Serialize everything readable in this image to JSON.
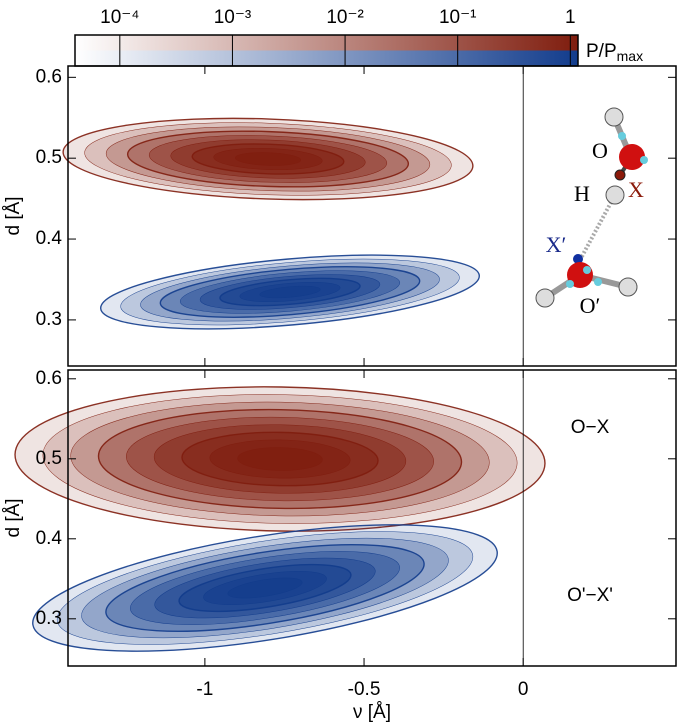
{
  "chart_data": [
    {
      "type": "colorbar",
      "label": "P/P",
      "label_sub": "max",
      "log": true,
      "xlim": [
        4e-05,
        1.17
      ],
      "xticks": [
        {
          "value": 0.0001,
          "label": "10⁻⁴"
        },
        {
          "value": 0.001,
          "label": "10⁻³"
        },
        {
          "value": 0.01,
          "label": "10⁻²"
        },
        {
          "value": 0.1,
          "label": "10⁻¹"
        },
        1
      ],
      "colors": [
        "#7f1d0e",
        "#123c8c"
      ]
    },
    {
      "type": "contour",
      "ylabel": "d [Å]",
      "xlim": [
        -1.43,
        0.48
      ],
      "ylim": [
        0.243,
        0.614
      ],
      "xticks": [
        -1,
        -0.5,
        0
      ],
      "yticks": [
        0.3,
        0.4,
        0.5,
        0.6
      ],
      "colors": [
        "#7f1d0e",
        "#123c8c"
      ],
      "annotations": [
        "O",
        "X",
        "H",
        "X′",
        "O′"
      ]
    },
    {
      "type": "contour",
      "xlabel": "ν [Å]",
      "ylabel": "d [Å]",
      "xlim": [
        -1.43,
        0.48
      ],
      "ylim": [
        0.241,
        0.611
      ],
      "xticks": [
        -1,
        -0.5,
        0
      ],
      "yticks": [
        0.3,
        0.4,
        0.5,
        0.6
      ],
      "colors": [
        "#7f1d0e",
        "#123c8c"
      ],
      "annotations": [
        "O−X",
        "O'−X'"
      ]
    }
  ]
}
